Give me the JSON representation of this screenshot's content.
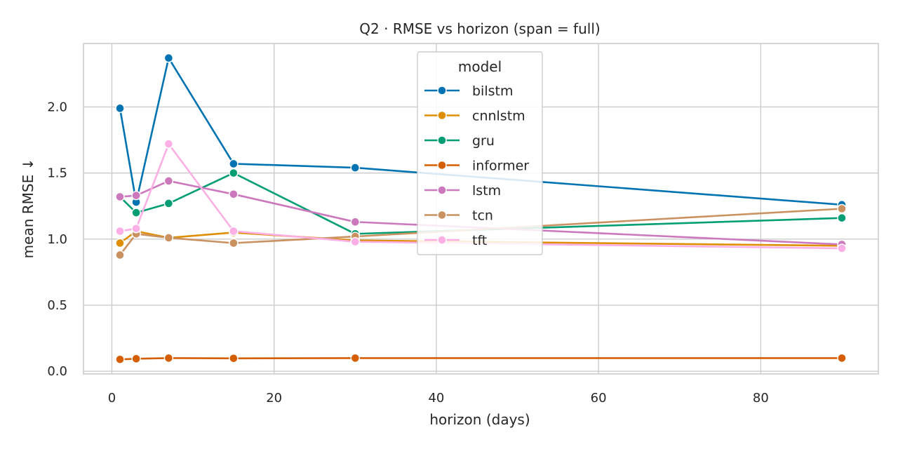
{
  "chart_data": {
    "type": "line",
    "title": "Q2 · RMSE vs horizon  (span = full)",
    "xlabel": "horizon (days)",
    "ylabel": "mean RMSE ↓",
    "xlim": [
      -3.5,
      94.5
    ],
    "ylim": [
      -0.02,
      2.48
    ],
    "xticks": [
      0,
      20,
      40,
      60,
      80
    ],
    "yticks": [
      0.0,
      0.5,
      1.0,
      1.5,
      2.0
    ],
    "ytick_labels": [
      "0.0",
      "0.5",
      "1.0",
      "1.5",
      "2.0"
    ],
    "grid": true,
    "legend": {
      "title": "model",
      "placement": "upper-center"
    },
    "x": [
      1,
      3,
      7,
      15,
      30,
      90
    ],
    "series": [
      {
        "name": "bilstm",
        "color": "#0173b2",
        "values": [
          1.99,
          1.28,
          2.37,
          1.57,
          1.54,
          1.26
        ]
      },
      {
        "name": "cnnlstm",
        "color": "#de8f05",
        "values": [
          0.97,
          1.06,
          1.01,
          1.05,
          0.99,
          0.95
        ]
      },
      {
        "name": "gru",
        "color": "#029e73",
        "values": [
          1.32,
          1.2,
          1.27,
          1.5,
          1.04,
          1.16
        ]
      },
      {
        "name": "informer",
        "color": "#d55e00",
        "values": [
          0.09,
          0.095,
          0.1,
          0.098,
          0.1,
          0.1
        ]
      },
      {
        "name": "lstm",
        "color": "#cc78bc",
        "values": [
          1.32,
          1.33,
          1.44,
          1.34,
          1.13,
          0.96
        ]
      },
      {
        "name": "tcn",
        "color": "#ca9161",
        "values": [
          0.88,
          1.04,
          1.01,
          0.97,
          1.02,
          1.23
        ]
      },
      {
        "name": "tft",
        "color": "#fbafe4",
        "values": [
          1.06,
          1.08,
          1.72,
          1.06,
          0.98,
          0.93
        ]
      }
    ]
  }
}
